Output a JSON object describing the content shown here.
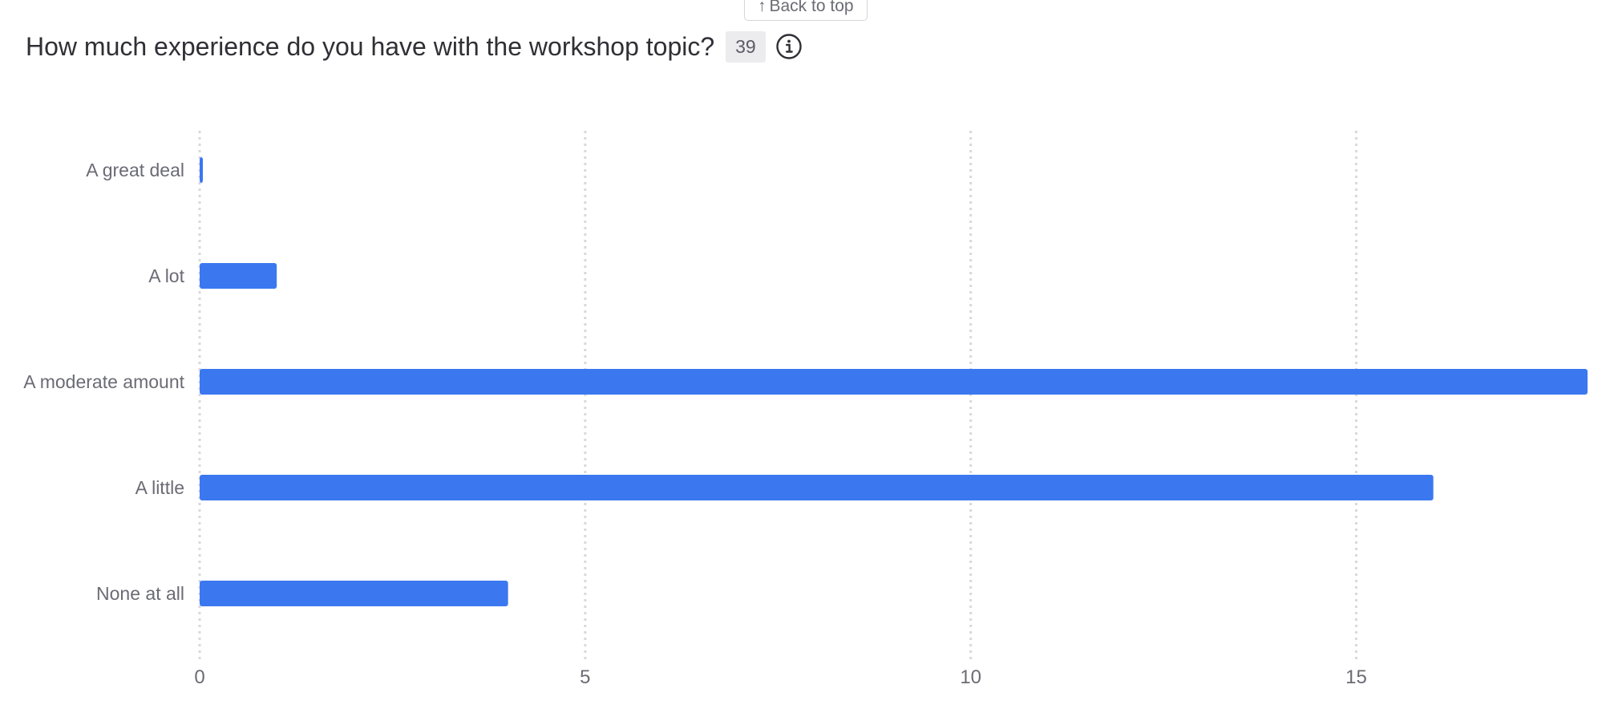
{
  "back_to_top_label": "Back to top",
  "question": {
    "title": "How much experience do you have with the workshop topic?",
    "response_count": "39"
  },
  "colors": {
    "bar": "#3b78f0",
    "grid": "#d9d9dd",
    "text": "#6b6b75"
  },
  "icons": {
    "info": "info-icon",
    "back": "arrow-up-icon"
  },
  "chart_data": {
    "type": "bar",
    "orientation": "horizontal",
    "categories": [
      "A great deal",
      "A lot",
      "A moderate amount",
      "A little",
      "None at all"
    ],
    "values": [
      0,
      1,
      18,
      16,
      4
    ],
    "xlim": [
      0,
      18
    ],
    "xticks": [
      0,
      5,
      10,
      15
    ],
    "grid": true,
    "title": "",
    "xlabel": "",
    "ylabel": ""
  }
}
